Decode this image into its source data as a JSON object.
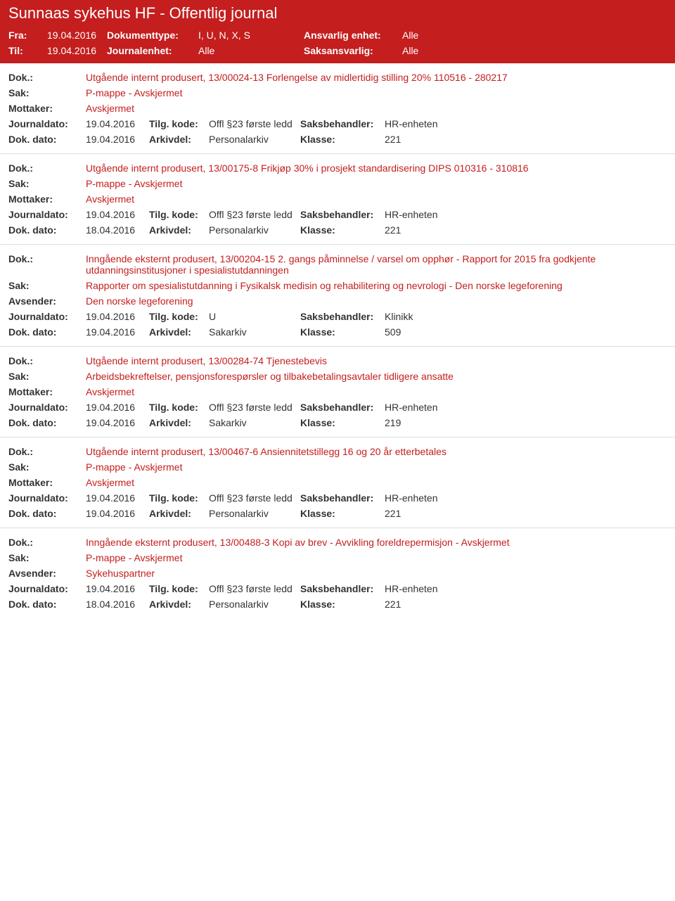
{
  "header": {
    "title": "Sunnaas sykehus HF - Offentlig journal",
    "fra_label": "Fra:",
    "fra_value": "19.04.2016",
    "til_label": "Til:",
    "til_value": "19.04.2016",
    "dokumenttype_label": "Dokumenttype:",
    "dokumenttype_value": "I, U, N, X, S",
    "journalenhet_label": "Journalenhet:",
    "journalenhet_value": "Alle",
    "ansvarlig_label": "Ansvarlig enhet:",
    "ansvarlig_value": "Alle",
    "saksansvarlig_label": "Saksansvarlig:",
    "saksansvarlig_value": "Alle"
  },
  "labels": {
    "dok": "Dok.:",
    "sak": "Sak:",
    "mottaker": "Mottaker:",
    "avsender": "Avsender:",
    "journaldato": "Journaldato:",
    "dokdato": "Dok. dato:",
    "tilgkode": "Tilg. kode:",
    "arkivdel": "Arkivdel:",
    "saksbehandler": "Saksbehandler:",
    "klasse": "Klasse:"
  },
  "entries": [
    {
      "dok": "Utgående internt produsert, 13/00024-13 Forlengelse av midlertidig stilling 20% 110516 - 280217",
      "sak": "P-mappe - Avskjermet",
      "party_label": "Mottaker:",
      "party": "Avskjermet",
      "journaldato": "19.04.2016",
      "tilgkode": "Offl §23 første ledd",
      "saksbehandler": "HR-enheten",
      "dokdato": "19.04.2016",
      "arkivdel": "Personalarkiv",
      "klasse": "221"
    },
    {
      "dok": "Utgående internt produsert, 13/00175-8 Frikjøp 30% i prosjekt standardisering DIPS 010316 - 310816",
      "sak": "P-mappe - Avskjermet",
      "party_label": "Mottaker:",
      "party": "Avskjermet",
      "journaldato": "19.04.2016",
      "tilgkode": "Offl §23 første ledd",
      "saksbehandler": "HR-enheten",
      "dokdato": "18.04.2016",
      "arkivdel": "Personalarkiv",
      "klasse": "221"
    },
    {
      "dok": "Inngående eksternt produsert, 13/00204-15 2. gangs påminnelse / varsel om opphør - Rapport for 2015 fra godkjente utdanningsinstitusjoner i spesialistutdanningen",
      "sak": "Rapporter om spesialistutdanning i Fysikalsk medisin og rehabilitering og nevrologi - Den norske legeforening",
      "party_label": "Avsender:",
      "party": "Den norske legeforening",
      "journaldato": "19.04.2016",
      "tilgkode": "U",
      "saksbehandler": "Klinikk",
      "dokdato": "19.04.2016",
      "arkivdel": "Sakarkiv",
      "klasse": "509"
    },
    {
      "dok": "Utgående internt produsert, 13/00284-74 Tjenestebevis",
      "sak": "Arbeidsbekreftelser, pensjonsforespørsler og tilbakebetalingsavtaler tidligere ansatte",
      "party_label": "Mottaker:",
      "party": "Avskjermet",
      "journaldato": "19.04.2016",
      "tilgkode": "Offl §23 første ledd",
      "saksbehandler": "HR-enheten",
      "dokdato": "19.04.2016",
      "arkivdel": "Sakarkiv",
      "klasse": "219"
    },
    {
      "dok": "Utgående internt produsert, 13/00467-6 Ansiennitetstillegg 16 og 20 år etterbetales",
      "sak": "P-mappe - Avskjermet",
      "party_label": "Mottaker:",
      "party": "Avskjermet",
      "journaldato": "19.04.2016",
      "tilgkode": "Offl §23 første ledd",
      "saksbehandler": "HR-enheten",
      "dokdato": "19.04.2016",
      "arkivdel": "Personalarkiv",
      "klasse": "221"
    },
    {
      "dok": "Inngående eksternt produsert, 13/00488-3 Kopi av brev - Avvikling foreldrepermisjon - Avskjermet",
      "sak": "P-mappe - Avskjermet",
      "party_label": "Avsender:",
      "party": "Sykehuspartner",
      "journaldato": "19.04.2016",
      "tilgkode": "Offl §23 første ledd",
      "saksbehandler": "HR-enheten",
      "dokdato": "18.04.2016",
      "arkivdel": "Personalarkiv",
      "klasse": "221"
    }
  ]
}
